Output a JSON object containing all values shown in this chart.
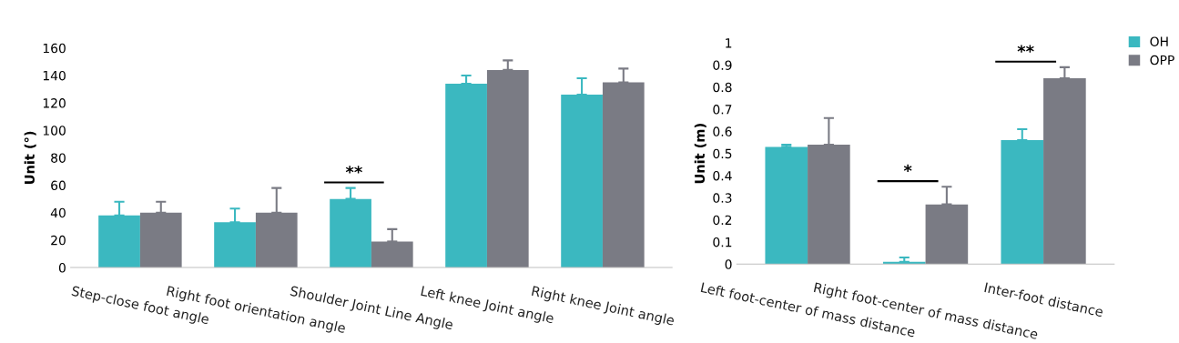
{
  "chart_data": [
    {
      "type": "bar",
      "ylabel": "Unit (°)",
      "categories": [
        "Step-close foot angle",
        "Right foot orientation angle",
        "Shoulder Joint Line Angle",
        "Left knee Joint angle",
        "Right knee Joint angle"
      ],
      "series": [
        {
          "color": "#3bb8c0",
          "values": [
            38,
            33,
            50,
            134,
            126
          ],
          "errors": [
            [
              38,
              48
            ],
            [
              33,
              43
            ],
            [
              50,
              58
            ],
            [
              134,
              140
            ],
            [
              126,
              138
            ]
          ]
        },
        {
          "color": "#7a7b84",
          "values": [
            40,
            40,
            19,
            144,
            135
          ],
          "errors": [
            [
              40,
              48
            ],
            [
              40,
              58
            ],
            [
              19,
              28
            ],
            [
              144,
              151
            ],
            [
              135,
              145
            ]
          ]
        }
      ],
      "ylim": [
        0,
        160
      ],
      "yticks": [
        0,
        20,
        40,
        60,
        80,
        100,
        120,
        140,
        160
      ],
      "grid": false,
      "annotations": [
        "**"
      ]
    },
    {
      "type": "bar",
      "ylabel": "Unit (m)",
      "categories": [
        "Left foot-center of mass distance",
        "Right foot-center of mass distance",
        "Inter-foot distance"
      ],
      "series": [
        {
          "name": "OH",
          "color": "#3bb8c0",
          "values": [
            0.53,
            0.01,
            0.56
          ],
          "errors": [
            [
              0.53,
              0.54
            ],
            [
              0.01,
              0.03
            ],
            [
              0.56,
              0.61
            ]
          ]
        },
        {
          "name": "OPP",
          "color": "#7a7b84",
          "values": [
            0.54,
            0.27,
            0.84
          ],
          "errors": [
            [
              0.54,
              0.66
            ],
            [
              0.27,
              0.35
            ],
            [
              0.84,
              0.89
            ]
          ]
        }
      ],
      "ylim": [
        0,
        1
      ],
      "yticks": [
        0,
        0.1,
        0.2,
        0.3,
        0.4,
        0.5,
        0.6,
        0.7,
        0.8,
        0.9,
        1
      ],
      "grid": false,
      "legend": "top right",
      "annotations": [
        "*",
        "**"
      ]
    }
  ]
}
